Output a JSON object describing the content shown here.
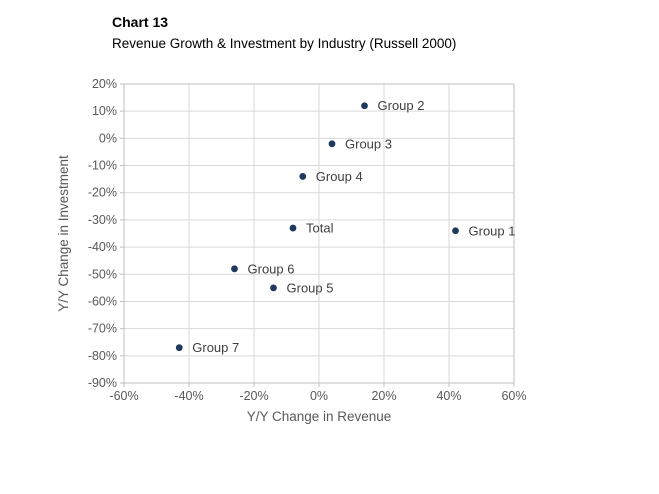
{
  "header": {
    "title": "Chart 13",
    "subtitle": "Revenue Growth & Investment by Industry (Russell 2000)"
  },
  "chart_data": {
    "type": "scatter",
    "title": "Revenue Growth & Investment by Industry (Russell 2000)",
    "xlabel": "Y/Y Change in Revenue",
    "ylabel": "Y/Y Change in Investment",
    "xlim": [
      -60,
      60
    ],
    "ylim": [
      -90,
      20
    ],
    "x_tick_labels": [
      "-60%",
      "-40%",
      "-20%",
      "0%",
      "20%",
      "40%",
      "60%"
    ],
    "x_tick_values": [
      -60,
      -40,
      -20,
      0,
      20,
      40,
      60
    ],
    "y_tick_labels": [
      "20%",
      "10%",
      "0%",
      "-10%",
      "-20%",
      "-30%",
      "-40%",
      "-50%",
      "-60%",
      "-70%",
      "-80%",
      "-90%"
    ],
    "y_tick_values": [
      20,
      10,
      0,
      -10,
      -20,
      -30,
      -40,
      -50,
      -60,
      -70,
      -80,
      -90
    ],
    "grid": true,
    "legend": "none",
    "points": [
      {
        "label": "Group 1",
        "x": 42,
        "y": -34
      },
      {
        "label": "Group 2",
        "x": 14,
        "y": 12
      },
      {
        "label": "Group 3",
        "x": 4,
        "y": -2
      },
      {
        "label": "Group 4",
        "x": -5,
        "y": -14
      },
      {
        "label": "Total",
        "x": -8,
        "y": -33
      },
      {
        "label": "Group 5",
        "x": -14,
        "y": -55
      },
      {
        "label": "Group 6",
        "x": -26,
        "y": -48
      },
      {
        "label": "Group 7",
        "x": -43,
        "y": -77
      }
    ],
    "colors": {
      "point": "#1f3a5f",
      "grid": "#d9d9d9",
      "axis_border": "#bfbfbf",
      "tick_text": "#595959",
      "point_label_text": "#404040",
      "title_text": "#000000",
      "background": "#ffffff"
    }
  }
}
